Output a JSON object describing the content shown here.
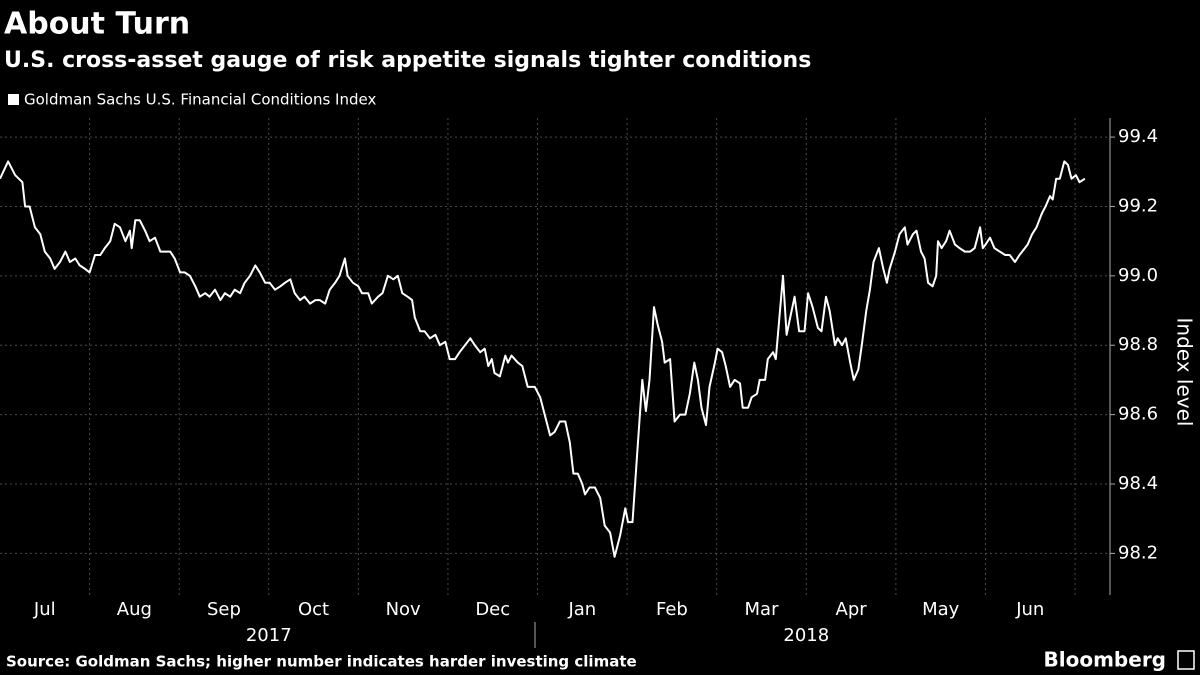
{
  "chart_data": {
    "type": "line",
    "title": "About Turn",
    "subtitle": "U.S. cross-asset gauge of risk appetite signals tighter conditions",
    "y_axis_label": "Index level",
    "source": "Source: Goldman Sachs; higher number indicates harder investing climate",
    "brand": "Bloomberg",
    "x": [
      0,
      0.09,
      0.17,
      0.25,
      0.28,
      0.33,
      0.39,
      0.45,
      0.5,
      0.56,
      0.61,
      0.67,
      0.73,
      0.78,
      0.84,
      0.89,
      0.95,
      1.0,
      1.06,
      1.12,
      1.17,
      1.23,
      1.28,
      1.34,
      1.4,
      1.45,
      1.47,
      1.51,
      1.56,
      1.62,
      1.67,
      1.73,
      1.79,
      1.9,
      1.95,
      2.01,
      2.06,
      2.12,
      2.18,
      2.23,
      2.29,
      2.34,
      2.4,
      2.46,
      2.51,
      2.57,
      2.62,
      2.68,
      2.73,
      2.79,
      2.85,
      2.9,
      2.96,
      3.01,
      3.07,
      3.13,
      3.18,
      3.24,
      3.29,
      3.35,
      3.4,
      3.46,
      3.52,
      3.57,
      3.63,
      3.68,
      3.74,
      3.79,
      3.85,
      3.88,
      3.94,
      4.0,
      4.04,
      4.11,
      4.15,
      4.22,
      4.27,
      4.33,
      4.39,
      4.44,
      4.49,
      4.55,
      4.6,
      4.63,
      4.69,
      4.74,
      4.8,
      4.86,
      4.91,
      4.97,
      5.02,
      5.08,
      5.13,
      5.19,
      5.25,
      5.3,
      5.36,
      5.41,
      5.45,
      5.49,
      5.52,
      5.58,
      5.64,
      5.67,
      5.71,
      5.78,
      5.83,
      5.89,
      5.97,
      6.03,
      6.08,
      6.14,
      6.19,
      6.25,
      6.31,
      6.36,
      6.4,
      6.45,
      6.5,
      6.53,
      6.58,
      6.64,
      6.7,
      6.75,
      6.81,
      6.86,
      6.92,
      6.98,
      7.01,
      7.06,
      7.11,
      7.17,
      7.21,
      7.25,
      7.3,
      7.34,
      7.39,
      7.42,
      7.48,
      7.53,
      7.59,
      7.65,
      7.7,
      7.75,
      7.79,
      7.83,
      7.88,
      7.92,
      7.98,
      8.01,
      8.06,
      8.1,
      8.15,
      8.2,
      8.26,
      8.29,
      8.35,
      8.39,
      8.45,
      8.48,
      8.54,
      8.57,
      8.63,
      8.66,
      8.69,
      8.74,
      8.78,
      8.82,
      8.87,
      8.92,
      8.98,
      9.02,
      9.07,
      9.13,
      9.17,
      9.22,
      9.26,
      9.32,
      9.35,
      9.4,
      9.44,
      9.49,
      9.53,
      9.58,
      9.62,
      9.67,
      9.71,
      9.75,
      9.81,
      9.86,
      9.9,
      9.93,
      9.99,
      10.04,
      10.1,
      10.13,
      10.19,
      10.23,
      10.28,
      10.32,
      10.36,
      10.41,
      10.45,
      10.47,
      10.51,
      10.56,
      10.6,
      10.66,
      10.71,
      10.77,
      10.83,
      10.88,
      10.94,
      10.97,
      11.0,
      11.05,
      11.1,
      11.16,
      11.22,
      11.27,
      11.33,
      11.38,
      11.44,
      11.47,
      11.52,
      11.57,
      11.63,
      11.67,
      11.72,
      11.75,
      11.79,
      11.83,
      11.88,
      11.92,
      11.96,
      12.01,
      12.05,
      12.11
    ],
    "series": [
      {
        "name": "Goldman Sachs U.S. Financial Conditions Index",
        "color": "#ffffff",
        "values": [
          99.28,
          99.33,
          99.29,
          99.27,
          99.2,
          99.2,
          99.14,
          99.12,
          99.07,
          99.05,
          99.02,
          99.04,
          99.07,
          99.04,
          99.05,
          99.03,
          99.02,
          99.01,
          99.06,
          99.06,
          99.08,
          99.1,
          99.15,
          99.14,
          99.1,
          99.13,
          99.08,
          99.16,
          99.16,
          99.13,
          99.1,
          99.11,
          99.07,
          99.07,
          99.05,
          99.01,
          99.01,
          99.0,
          98.97,
          98.94,
          98.95,
          98.94,
          98.96,
          98.93,
          98.95,
          98.94,
          98.96,
          98.95,
          98.98,
          99.0,
          99.03,
          99.01,
          98.98,
          98.98,
          98.96,
          98.97,
          98.98,
          98.99,
          98.95,
          98.93,
          98.94,
          98.92,
          98.93,
          98.93,
          98.92,
          98.96,
          98.98,
          99.0,
          99.05,
          99.0,
          98.98,
          98.97,
          98.95,
          98.95,
          98.92,
          98.94,
          98.95,
          99.0,
          98.99,
          99.0,
          98.95,
          98.94,
          98.93,
          98.88,
          98.84,
          98.84,
          98.82,
          98.83,
          98.8,
          98.81,
          98.76,
          98.76,
          98.78,
          98.8,
          98.82,
          98.8,
          98.78,
          98.79,
          98.74,
          98.76,
          98.72,
          98.71,
          98.77,
          98.75,
          98.77,
          98.75,
          98.74,
          98.68,
          98.68,
          98.65,
          98.6,
          98.54,
          98.55,
          98.58,
          98.58,
          98.52,
          98.43,
          98.43,
          98.4,
          98.37,
          98.39,
          98.39,
          98.36,
          98.28,
          98.26,
          98.19,
          98.25,
          98.33,
          98.29,
          98.29,
          98.48,
          98.7,
          98.61,
          98.7,
          98.91,
          98.86,
          98.81,
          98.75,
          98.76,
          98.58,
          98.6,
          98.6,
          98.66,
          98.75,
          98.7,
          98.62,
          98.57,
          98.68,
          98.75,
          98.79,
          98.78,
          98.74,
          98.68,
          98.7,
          98.69,
          98.62,
          98.62,
          98.65,
          98.66,
          98.7,
          98.7,
          98.76,
          98.78,
          98.76,
          98.85,
          99.0,
          98.83,
          98.88,
          98.94,
          98.84,
          98.84,
          98.95,
          98.91,
          98.85,
          98.84,
          98.94,
          98.9,
          98.8,
          98.82,
          98.8,
          98.82,
          98.75,
          98.7,
          98.73,
          98.8,
          98.9,
          98.96,
          99.04,
          99.08,
          99.02,
          98.98,
          99.02,
          99.07,
          99.12,
          99.14,
          99.09,
          99.12,
          99.13,
          99.07,
          99.05,
          98.98,
          98.97,
          99.0,
          99.1,
          99.08,
          99.1,
          99.13,
          99.09,
          99.08,
          99.07,
          99.07,
          99.08,
          99.14,
          99.08,
          99.09,
          99.11,
          99.08,
          99.07,
          99.06,
          99.06,
          99.04,
          99.06,
          99.08,
          99.09,
          99.12,
          99.14,
          99.18,
          99.2,
          99.23,
          99.22,
          99.28,
          99.28,
          99.33,
          99.32,
          99.28,
          99.29,
          99.27,
          99.28
        ]
      }
    ],
    "xlim": [
      0,
      12.39
    ],
    "xticks": [
      {
        "value": 0.5,
        "label": "Jul"
      },
      {
        "value": 1.5,
        "label": "Aug"
      },
      {
        "value": 2.5,
        "label": "Sep"
      },
      {
        "value": 3.5,
        "label": "Oct"
      },
      {
        "value": 4.5,
        "label": "Nov"
      },
      {
        "value": 5.5,
        "label": "Dec"
      },
      {
        "value": 6.5,
        "label": "Jan"
      },
      {
        "value": 7.5,
        "label": "Feb"
      },
      {
        "value": 8.5,
        "label": "Mar"
      },
      {
        "value": 9.5,
        "label": "Apr"
      },
      {
        "value": 10.5,
        "label": "May"
      },
      {
        "value": 11.5,
        "label": "Jun"
      }
    ],
    "x_group_labels": [
      "2017",
      "2018"
    ],
    "ylim": [
      98.08,
      99.455
    ],
    "yticks": [
      98.2,
      98.4,
      {
        "value": 98.6,
        "label": "98.6"
      },
      98.8,
      {
        "value": 99.0,
        "label": "99.0"
      },
      99.2,
      99.4
    ],
    "grid": true
  }
}
